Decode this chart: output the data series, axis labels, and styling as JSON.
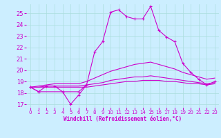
{
  "xlabel": "Windchill (Refroidissement éolien,°C)",
  "background_color": "#cceeff",
  "grid_color": "#aadddd",
  "line_color": "#cc00cc",
  "xlim": [
    -0.5,
    23.5
  ],
  "ylim": [
    16.7,
    25.8
  ],
  "yticks": [
    17,
    18,
    19,
    20,
    21,
    22,
    23,
    24,
    25
  ],
  "xticks": [
    0,
    1,
    2,
    3,
    4,
    5,
    6,
    7,
    8,
    9,
    10,
    11,
    12,
    13,
    14,
    15,
    16,
    17,
    18,
    19,
    20,
    21,
    22,
    23
  ],
  "hours": [
    0,
    1,
    2,
    3,
    4,
    5,
    6,
    7,
    8,
    9,
    10,
    11,
    12,
    13,
    14,
    15,
    16,
    17,
    18,
    19,
    20,
    21,
    22,
    23
  ],
  "curve1": [
    18.5,
    18.1,
    18.6,
    18.6,
    18.1,
    17.0,
    17.8,
    18.7,
    21.6,
    22.5,
    25.1,
    25.3,
    24.7,
    24.5,
    24.5,
    25.6,
    23.5,
    22.9,
    22.5,
    20.6,
    19.8,
    19.2,
    18.7,
    19.0
  ],
  "curve2_x": [
    0,
    1,
    4,
    6,
    7
  ],
  "curve2_y": [
    18.5,
    18.1,
    18.1,
    18.1,
    18.7
  ],
  "curve3": [
    18.5,
    18.5,
    18.5,
    18.5,
    18.5,
    18.5,
    18.5,
    18.5,
    18.6,
    18.7,
    18.8,
    18.9,
    19.0,
    19.0,
    19.1,
    19.1,
    19.1,
    19.0,
    19.0,
    18.9,
    18.8,
    18.8,
    18.7,
    18.8
  ],
  "curve4": [
    18.5,
    18.5,
    18.6,
    18.6,
    18.6,
    18.6,
    18.6,
    18.7,
    18.8,
    18.9,
    19.1,
    19.2,
    19.3,
    19.4,
    19.4,
    19.5,
    19.4,
    19.3,
    19.2,
    19.1,
    19.0,
    18.9,
    18.8,
    18.9
  ],
  "curve5": [
    18.5,
    18.6,
    18.7,
    18.8,
    18.8,
    18.8,
    18.8,
    19.0,
    19.3,
    19.6,
    19.9,
    20.1,
    20.3,
    20.5,
    20.6,
    20.7,
    20.5,
    20.3,
    20.1,
    19.8,
    19.6,
    19.4,
    19.2,
    19.3
  ]
}
